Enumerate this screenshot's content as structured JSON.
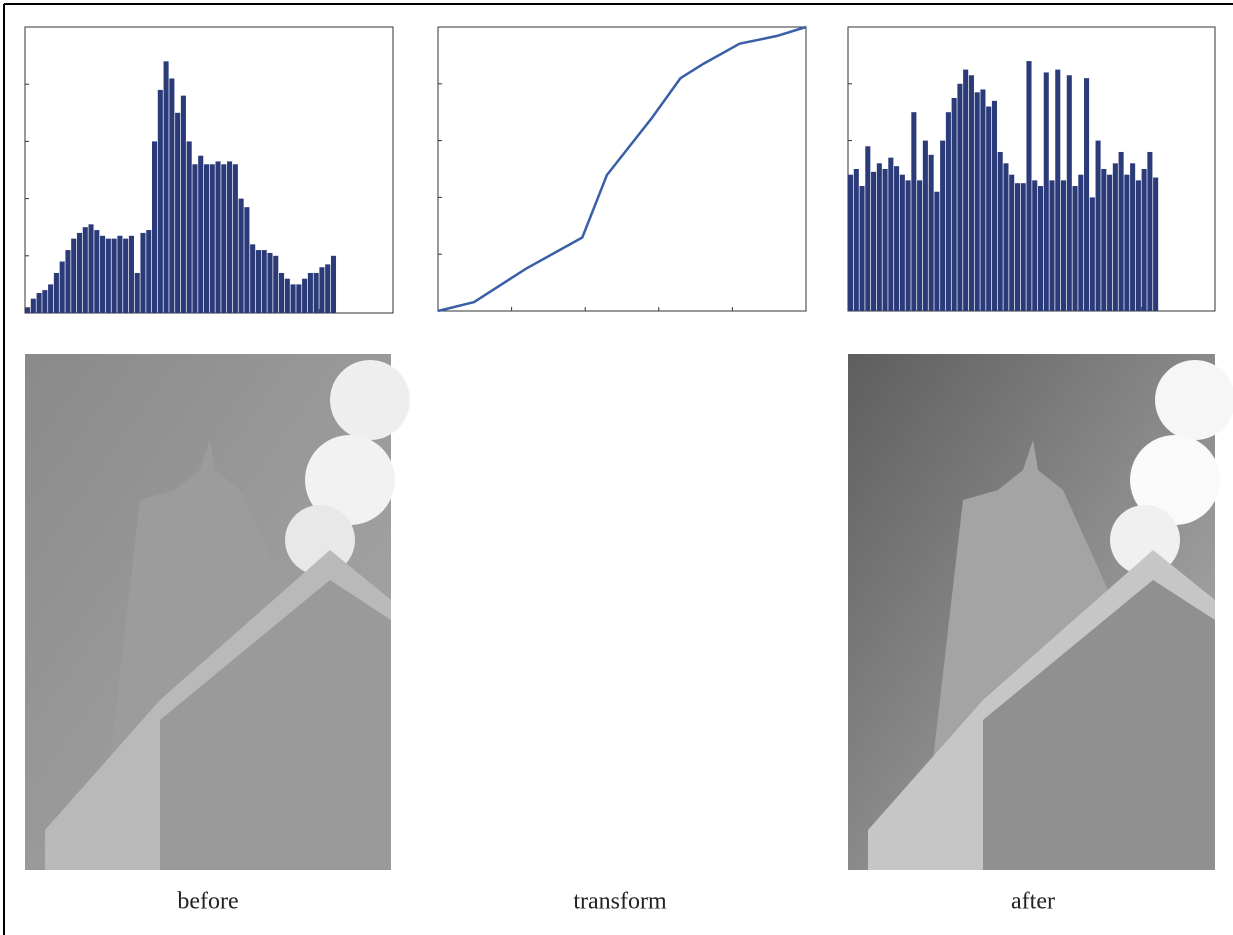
{
  "captions": [
    "before",
    "transform",
    "after"
  ],
  "chart_data": [
    {
      "type": "bar",
      "color": "#2b3a78",
      "xlim": [
        0,
        255
      ],
      "ylim": [
        0,
        100
      ],
      "x": [
        0,
        4,
        8,
        12,
        16,
        20,
        24,
        28,
        32,
        36,
        40,
        44,
        48,
        52,
        56,
        60,
        64,
        68,
        72,
        76,
        80,
        84,
        88,
        92,
        96,
        100,
        104,
        108,
        112,
        116,
        120,
        124,
        128,
        132,
        136,
        140,
        144,
        148,
        152,
        156,
        160,
        164,
        168,
        172,
        176,
        180,
        184,
        188,
        192,
        196,
        200,
        204,
        208,
        212
      ],
      "values": [
        2,
        5,
        7,
        8,
        10,
        14,
        18,
        22,
        26,
        28,
        30,
        31,
        29,
        27,
        26,
        26,
        27,
        26,
        27,
        14,
        28,
        29,
        60,
        78,
        88,
        82,
        70,
        76,
        60,
        52,
        55,
        52,
        52,
        53,
        52,
        53,
        52,
        40,
        37,
        24,
        22,
        22,
        21,
        20,
        14,
        12,
        10,
        10,
        12,
        14,
        14,
        16,
        17,
        20
      ]
    },
    {
      "type": "line",
      "color": "#3a5fa8",
      "xlim": [
        0,
        255
      ],
      "ylim": [
        0,
        255
      ],
      "x": [
        0,
        25,
        61,
        100,
        117,
        148,
        168,
        184,
        209,
        235,
        255
      ],
      "values": [
        0,
        8,
        38,
        66,
        122,
        173,
        209,
        222,
        240,
        247,
        255
      ]
    },
    {
      "type": "bar",
      "color": "#2b3a78",
      "xlim": [
        0,
        255
      ],
      "ylim": [
        0,
        100
      ],
      "x": [
        0,
        4,
        8,
        12,
        16,
        20,
        24,
        28,
        32,
        36,
        40,
        44,
        48,
        52,
        56,
        60,
        64,
        68,
        72,
        76,
        80,
        84,
        88,
        92,
        96,
        100,
        104,
        108,
        112,
        116,
        120,
        124,
        128,
        132,
        136,
        140,
        144,
        148,
        152,
        156,
        160,
        164,
        168,
        172,
        176,
        180,
        184,
        188,
        192,
        196,
        200,
        204,
        208,
        212
      ],
      "values": [
        48,
        50,
        44,
        58,
        49,
        52,
        50,
        54,
        51,
        48,
        46,
        70,
        46,
        60,
        55,
        42,
        60,
        70,
        75,
        80,
        85,
        83,
        77,
        78,
        72,
        74,
        56,
        52,
        48,
        45,
        45,
        88,
        46,
        44,
        84,
        46,
        85,
        46,
        83,
        44,
        48,
        82,
        40,
        60,
        50,
        48,
        52,
        56,
        48,
        52,
        46,
        50,
        56,
        47
      ]
    }
  ]
}
